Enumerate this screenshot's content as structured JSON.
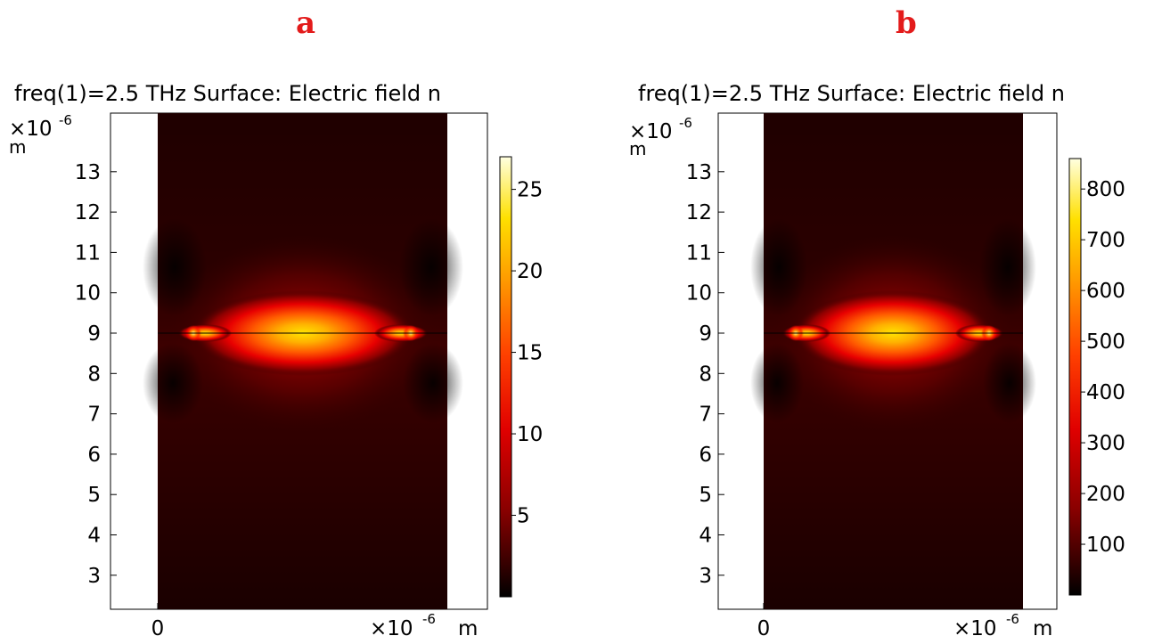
{
  "panels": [
    {
      "letter": "a",
      "title": "freq(1)=2.5 THz  Surface: Electric field n",
      "y_scale_label": "×10",
      "y_scale_exp": "-6",
      "y_unit": "m",
      "x_scale_label": "×10",
      "x_scale_exp": "-6",
      "x_unit": "m"
    },
    {
      "letter": "b",
      "title": "freq(1)=2.5 THz  Surface: Electric field n",
      "y_scale_label": "×10",
      "y_scale_exp": "-6",
      "y_unit": "m",
      "x_scale_label": "×10",
      "x_scale_exp": "-6",
      "x_unit": "m"
    }
  ],
  "chart_data": [
    {
      "type": "heatmap",
      "title": "freq(1)=2.5 THz  Surface: Electric field n",
      "frequency": "2.5 THz",
      "quantity": "Electric field norm",
      "xlabel": "m",
      "ylabel": "m",
      "x_ticks": [
        0
      ],
      "y_ticks": [
        3,
        4,
        5,
        6,
        7,
        8,
        9,
        10,
        11,
        12,
        13
      ],
      "ylim": [
        2.2,
        14.3
      ],
      "colorbar": {
        "ticks": [
          5,
          10,
          15,
          20,
          25
        ],
        "range": [
          0,
          27
        ]
      },
      "colormap": [
        "#000000",
        "#3a0000",
        "#8b0000",
        "#e00000",
        "#ff4000",
        "#ff9a00",
        "#ffe000",
        "#ffffe0"
      ],
      "field": {
        "center_y": 9.0,
        "peak_value": 27,
        "hotspot_y": 9.0
      }
    },
    {
      "type": "heatmap",
      "title": "freq(1)=2.5 THz  Surface: Electric field n",
      "frequency": "2.5 THz",
      "quantity": "Electric field norm",
      "xlabel": "m",
      "ylabel": "m",
      "x_ticks": [
        0
      ],
      "y_ticks": [
        3,
        4,
        5,
        6,
        7,
        8,
        9,
        10,
        11,
        12,
        13
      ],
      "ylim": [
        2.2,
        14.3
      ],
      "colorbar": {
        "ticks": [
          100,
          200,
          300,
          400,
          500,
          600,
          700,
          800
        ],
        "range": [
          0,
          860
        ]
      },
      "colormap": [
        "#000000",
        "#3a0000",
        "#8b0000",
        "#e00000",
        "#ff4000",
        "#ff9a00",
        "#ffe000",
        "#ffffe0"
      ],
      "field": {
        "center_y": 9.0,
        "peak_value": 860,
        "hotspot_y": 9.0
      }
    }
  ]
}
